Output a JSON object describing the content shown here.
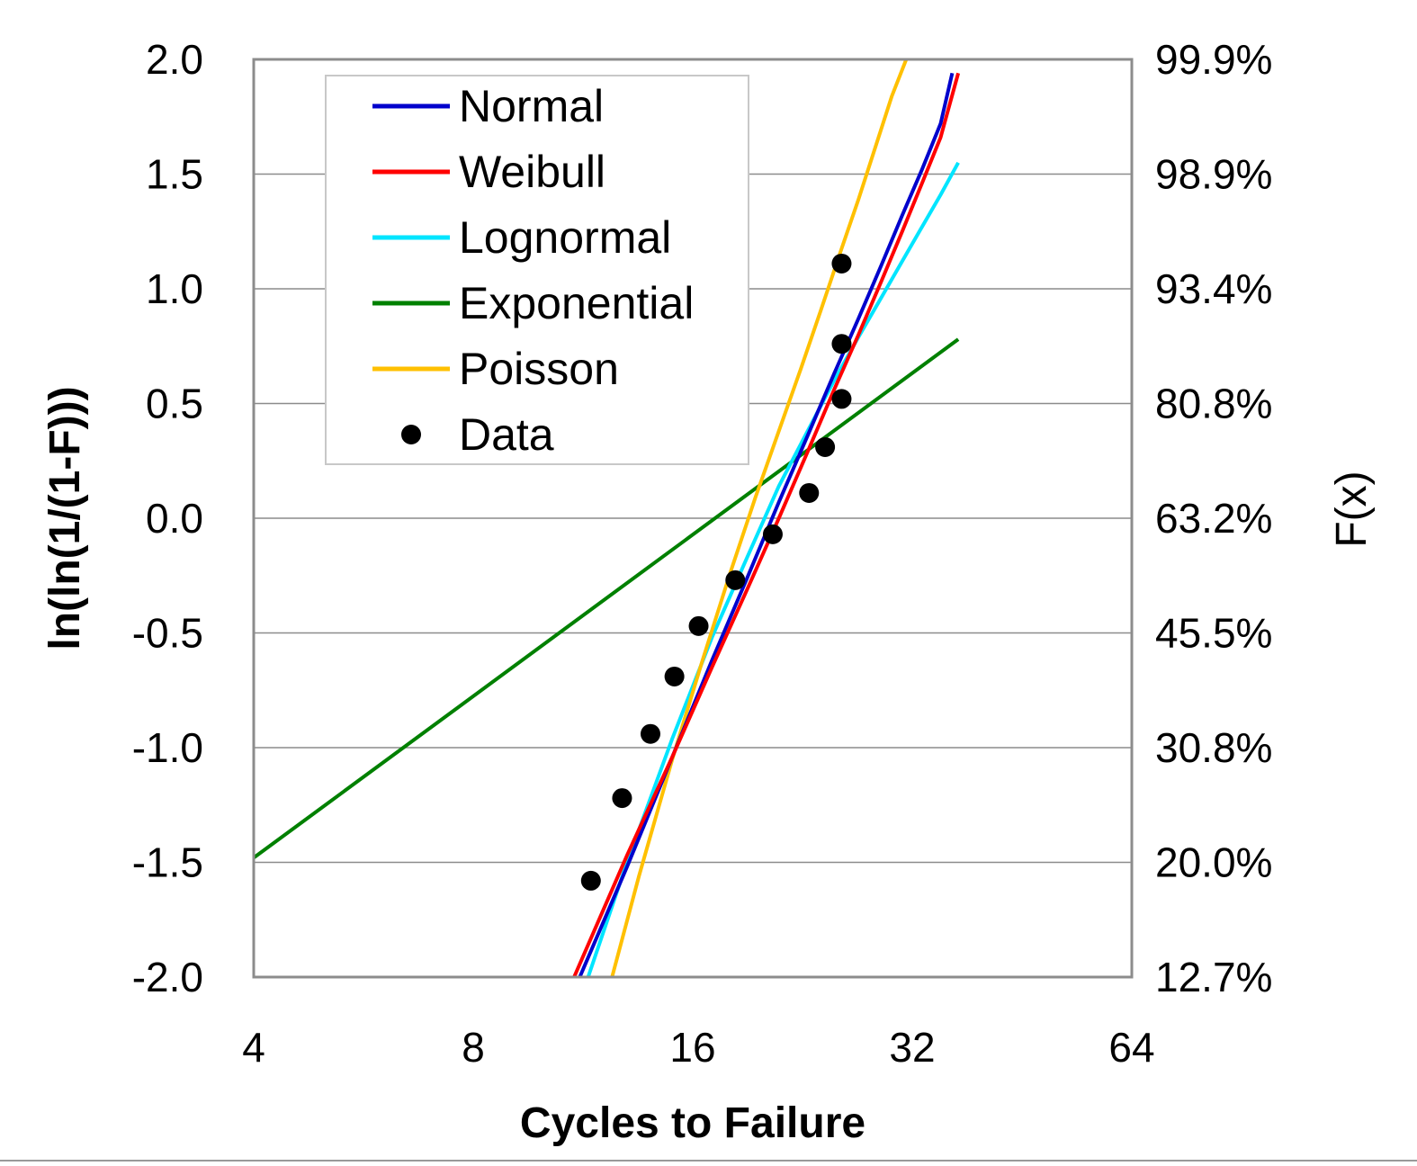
{
  "chart_data": {
    "type": "line",
    "xlabel": "Cycles to Failure",
    "ylabel": "ln(ln(1/(1-F)))",
    "y2label": "F(x)",
    "x_scale": "log2",
    "xlim": [
      4,
      64
    ],
    "ylim": [
      -2.0,
      2.0
    ],
    "x_ticks": [
      4,
      8,
      16,
      32,
      64
    ],
    "x_tick_labels": [
      "4",
      "8",
      "16",
      "32",
      "64"
    ],
    "y_ticks": [
      2.0,
      1.5,
      1.0,
      0.5,
      0.0,
      -0.5,
      -1.0,
      -1.5,
      -2.0
    ],
    "y_tick_labels": [
      "2.0",
      "1.5",
      "1.0",
      "0.5",
      "0.0",
      "-0.5",
      "-1.0",
      "-1.5",
      "-2.0"
    ],
    "y2_tick_labels": [
      "99.9%",
      "98.9%",
      "93.4%",
      "80.8%",
      "63.2%",
      "45.5%",
      "30.8%",
      "20.0%",
      "12.7%"
    ],
    "grid": "horizontal",
    "legend_position": "top-left",
    "series": [
      {
        "name": "Normal",
        "color": "#0000cc",
        "kind": "line",
        "x": [
          11.2,
          13.0,
          15.0,
          17.0,
          19.0,
          21.0,
          23.0,
          25.0,
          27.0,
          29.0,
          31.0,
          33.0,
          35.0,
          36.3
        ],
        "y": [
          -2.0,
          -1.52,
          -1.04,
          -0.62,
          -0.26,
          0.07,
          0.36,
          0.63,
          0.87,
          1.1,
          1.32,
          1.52,
          1.72,
          1.94
        ]
      },
      {
        "name": "Weibull",
        "color": "#ff0000",
        "kind": "line",
        "x": [
          11.0,
          13.0,
          15.0,
          17.0,
          19.0,
          21.0,
          23.0,
          25.0,
          27.0,
          29.0,
          31.0,
          33.0,
          35.0,
          37.0
        ],
        "y": [
          -2.0,
          -1.47,
          -1.04,
          -0.65,
          -0.31,
          0.0,
          0.29,
          0.56,
          0.8,
          1.03,
          1.25,
          1.46,
          1.66,
          1.94
        ]
      },
      {
        "name": "Lognormal",
        "color": "#00e5ff",
        "kind": "line",
        "x": [
          11.5,
          13.0,
          15.0,
          17.0,
          19.0,
          21.0,
          23.0,
          25.0,
          27.0,
          29.0,
          31.0,
          33.0,
          35.0,
          37.0
        ],
        "y": [
          -2.0,
          -1.5,
          -0.96,
          -0.52,
          -0.17,
          0.14,
          0.38,
          0.6,
          0.79,
          0.96,
          1.12,
          1.27,
          1.41,
          1.55
        ]
      },
      {
        "name": "Exponential",
        "color": "#008000",
        "kind": "line",
        "x": [
          4,
          37
        ],
        "y": [
          -1.48,
          0.78
        ]
      },
      {
        "name": "Poisson",
        "color": "#ffc000",
        "kind": "line",
        "x": [
          12.4,
          13.5,
          15.0,
          16.5,
          18.0,
          19.5,
          21.0,
          22.5,
          24.0,
          25.5,
          27.0,
          28.5,
          30.0,
          31.4
        ],
        "y": [
          -2.0,
          -1.56,
          -1.05,
          -0.62,
          -0.24,
          0.09,
          0.38,
          0.65,
          0.91,
          1.16,
          1.39,
          1.62,
          1.84,
          2.0
        ]
      },
      {
        "name": "Data",
        "color": "#000000",
        "kind": "scatter",
        "x": [
          11.6,
          12.8,
          14.0,
          15.1,
          16.3,
          18.3,
          20.6,
          23.1,
          24.3,
          25.6,
          25.6
        ],
        "y": [
          -1.58,
          -1.22,
          -0.94,
          -0.69,
          -0.47,
          -0.27,
          -0.07,
          0.11,
          0.31,
          0.52,
          0.76
        ]
      },
      {
        "name": "",
        "color": "#000000",
        "kind": "scatter-extra",
        "x": [
          25.6
        ],
        "y": [
          1.11
        ]
      }
    ]
  }
}
